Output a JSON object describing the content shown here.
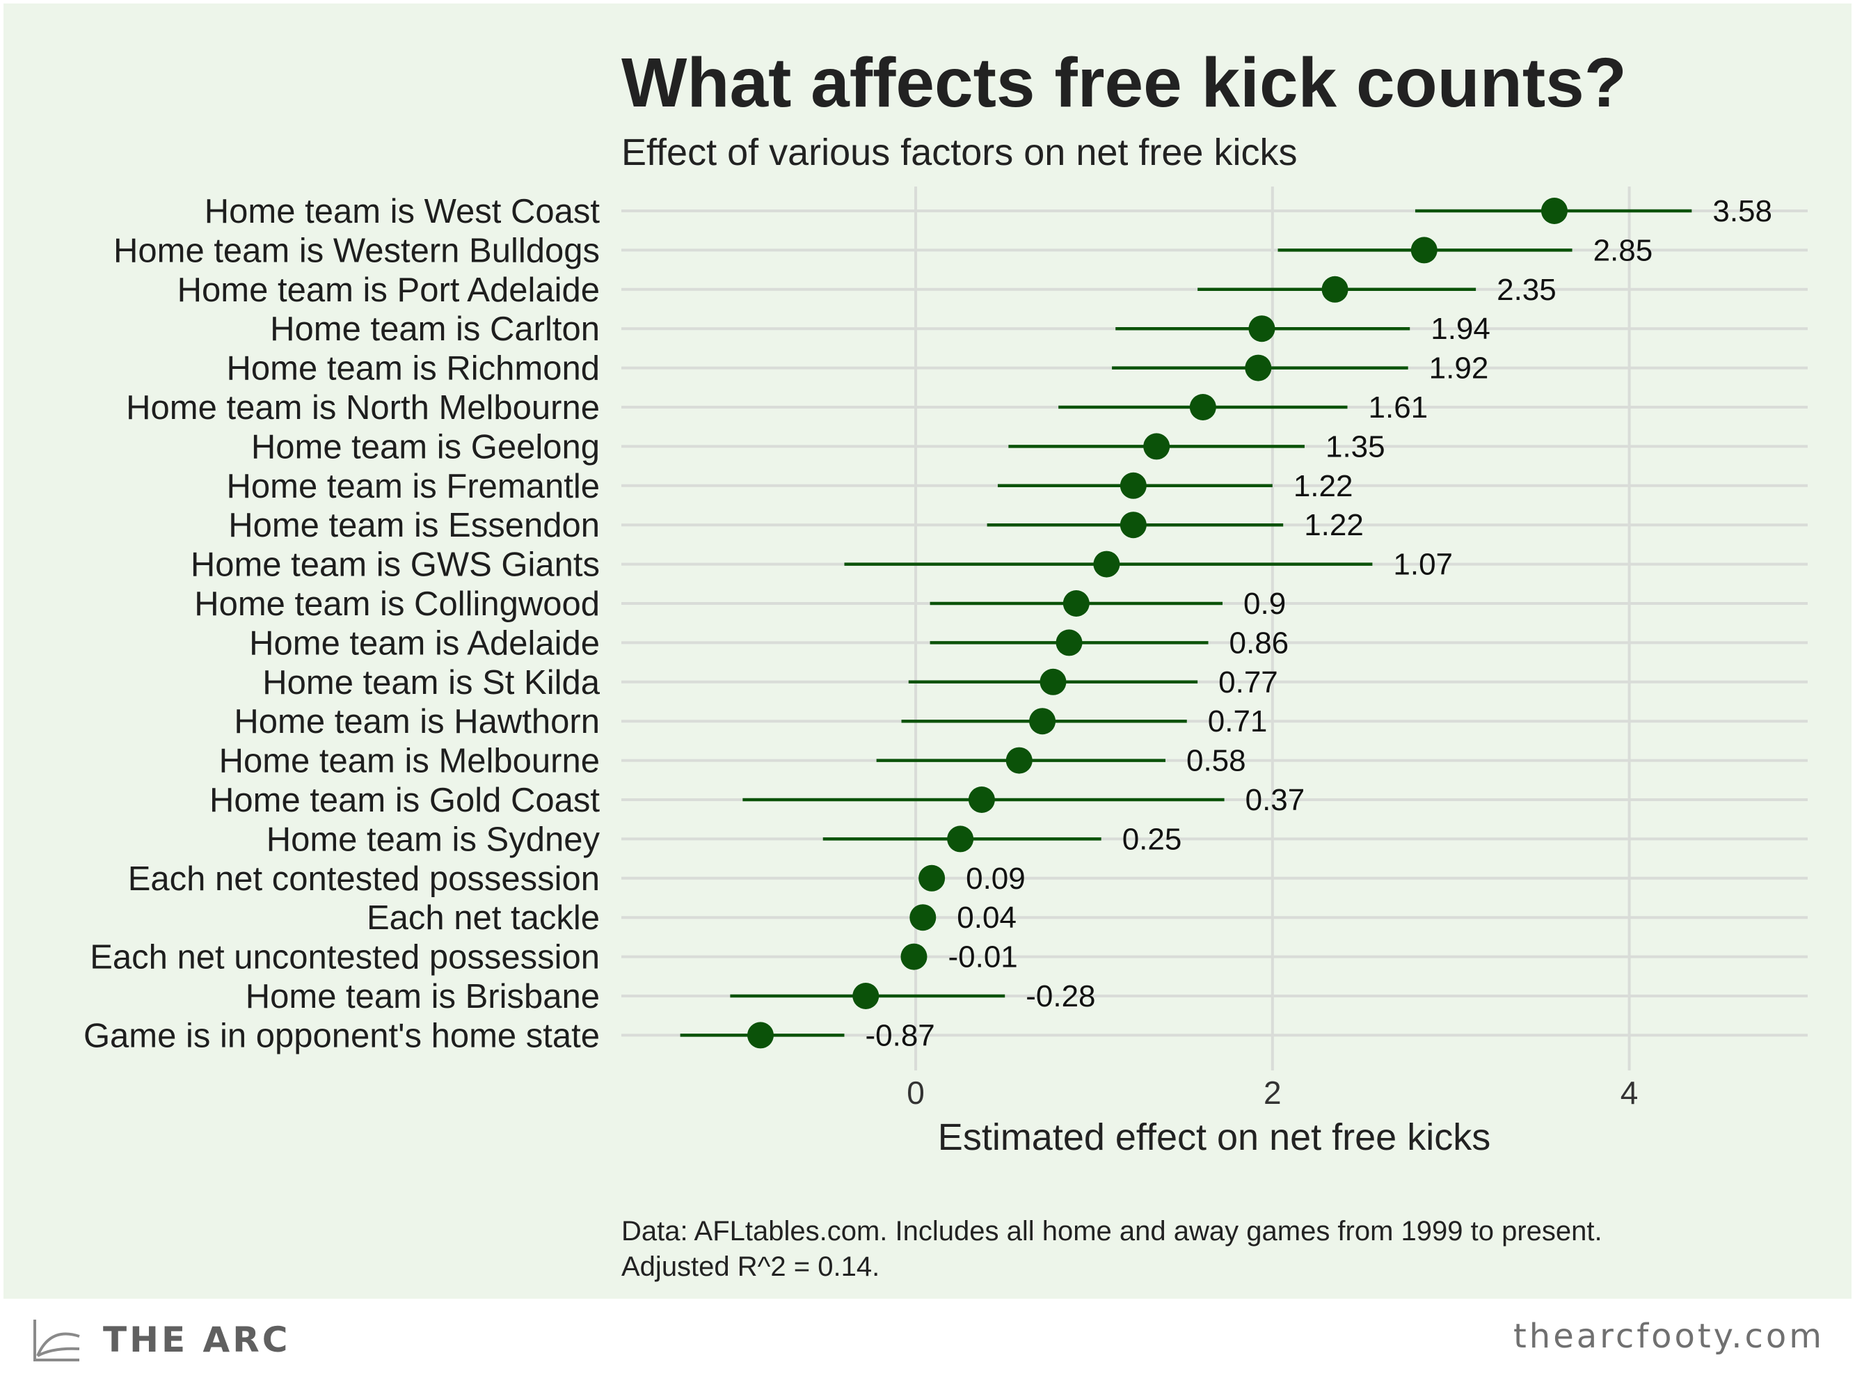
{
  "brand": {
    "name": "THE ARC",
    "site": "thearcfooty.com"
  },
  "colors": {
    "panel_bg": "#edf5ea",
    "point": "#0b5209",
    "interval": "#0b5209",
    "grid": "#d9dcd8",
    "text": "#222222"
  },
  "chart_data": {
    "type": "scatter",
    "style": "point-range (coefficient estimates with confidence intervals)",
    "title": "What affects free kick counts?",
    "subtitle": "Effect of various factors on net free kicks",
    "xlabel": "Estimated effect on net free kicks",
    "ylabel": "",
    "xlim": [
      -1.65,
      5.0
    ],
    "xticks": [
      0,
      2,
      4
    ],
    "grid": true,
    "legend": "none",
    "caption": [
      "Data: AFLtables.com. Includes all home and away games from 1999 to present.",
      "Adjusted R^2 = 0.14."
    ],
    "series": [
      {
        "label": "Home team is West Coast",
        "estimate": 3.58,
        "lower": 2.8,
        "upper": 4.35,
        "display": "3.58"
      },
      {
        "label": "Home team is Western Bulldogs",
        "estimate": 2.85,
        "lower": 2.03,
        "upper": 3.68,
        "display": "2.85"
      },
      {
        "label": "Home team is Port Adelaide",
        "estimate": 2.35,
        "lower": 1.58,
        "upper": 3.14,
        "display": "2.35"
      },
      {
        "label": "Home team is Carlton",
        "estimate": 1.94,
        "lower": 1.12,
        "upper": 2.77,
        "display": "1.94"
      },
      {
        "label": "Home team is Richmond",
        "estimate": 1.92,
        "lower": 1.1,
        "upper": 2.76,
        "display": "1.92"
      },
      {
        "label": "Home team is North Melbourne",
        "estimate": 1.61,
        "lower": 0.8,
        "upper": 2.42,
        "display": "1.61"
      },
      {
        "label": "Home team is Geelong",
        "estimate": 1.35,
        "lower": 0.52,
        "upper": 2.18,
        "display": "1.35"
      },
      {
        "label": "Home team is Fremantle",
        "estimate": 1.22,
        "lower": 0.46,
        "upper": 2.0,
        "display": "1.22"
      },
      {
        "label": "Home team is Essendon",
        "estimate": 1.22,
        "lower": 0.4,
        "upper": 2.06,
        "display": "1.22"
      },
      {
        "label": "Home team is GWS Giants",
        "estimate": 1.07,
        "lower": -0.4,
        "upper": 2.56,
        "display": "1.07"
      },
      {
        "label": "Home team is Collingwood",
        "estimate": 0.9,
        "lower": 0.08,
        "upper": 1.72,
        "display": "0.9"
      },
      {
        "label": "Home team is Adelaide",
        "estimate": 0.86,
        "lower": 0.08,
        "upper": 1.64,
        "display": "0.86"
      },
      {
        "label": "Home team is St Kilda",
        "estimate": 0.77,
        "lower": -0.04,
        "upper": 1.58,
        "display": "0.77"
      },
      {
        "label": "Home team is Hawthorn",
        "estimate": 0.71,
        "lower": -0.08,
        "upper": 1.52,
        "display": "0.71"
      },
      {
        "label": "Home team is Melbourne",
        "estimate": 0.58,
        "lower": -0.22,
        "upper": 1.4,
        "display": "0.58"
      },
      {
        "label": "Home team is Gold Coast",
        "estimate": 0.37,
        "lower": -0.97,
        "upper": 1.73,
        "display": "0.37"
      },
      {
        "label": "Home team is Sydney",
        "estimate": 0.25,
        "lower": -0.52,
        "upper": 1.04,
        "display": "0.25"
      },
      {
        "label": "Each net contested possession",
        "estimate": 0.09,
        "lower": 0.07,
        "upper": 0.11,
        "display": "0.09"
      },
      {
        "label": "Each net tackle",
        "estimate": 0.04,
        "lower": 0.02,
        "upper": 0.06,
        "display": "0.04"
      },
      {
        "label": "Each net uncontested possession",
        "estimate": -0.01,
        "lower": -0.02,
        "upper": 0.0,
        "display": "-0.01"
      },
      {
        "label": "Home team is Brisbane",
        "estimate": -0.28,
        "lower": -1.04,
        "upper": 0.5,
        "display": "-0.28"
      },
      {
        "label": "Game is in opponent's home state",
        "estimate": -0.87,
        "lower": -1.32,
        "upper": -0.4,
        "display": "-0.87"
      }
    ]
  }
}
